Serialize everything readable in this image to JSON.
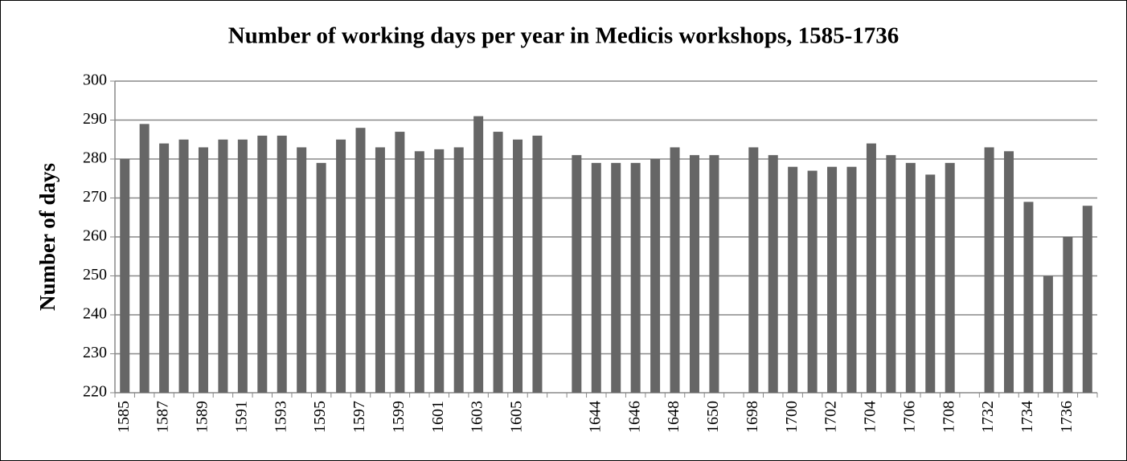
{
  "chart_data": {
    "type": "bar",
    "title": "Number of working days per year in Medicis workshops, 1585-1736",
    "y_label": "Number of days",
    "categories": [
      "1585",
      null,
      "1587",
      null,
      "1589",
      null,
      "1591",
      null,
      "1593",
      null,
      "1595",
      null,
      "1597",
      null,
      "1599",
      null,
      "1601",
      null,
      "1603",
      null,
      "1605",
      null,
      null,
      null,
      "1644",
      null,
      "1646",
      null,
      "1648",
      null,
      "1650",
      null,
      "1698",
      null,
      "1700",
      null,
      "1702",
      null,
      "1704",
      null,
      "1706",
      null,
      "1708",
      null,
      "1732",
      null,
      "1734",
      null,
      "1736",
      null
    ],
    "values": [
      280,
      289,
      284,
      285,
      283,
      285,
      285,
      286,
      286,
      283,
      279,
      285,
      288,
      283,
      287,
      282,
      282.5,
      283,
      291,
      287,
      285,
      286,
      null,
      281,
      279,
      279,
      279,
      280,
      283,
      281,
      281,
      null,
      283,
      281,
      278,
      277,
      278,
      278,
      284,
      281,
      279,
      276,
      279,
      null,
      283,
      282,
      269,
      250,
      260,
      268
    ],
    "color": "#666666",
    "ylim": [
      220,
      300
    ],
    "yticks": [
      220,
      230,
      240,
      250,
      260,
      270,
      280,
      290,
      300
    ],
    "grid": true
  }
}
